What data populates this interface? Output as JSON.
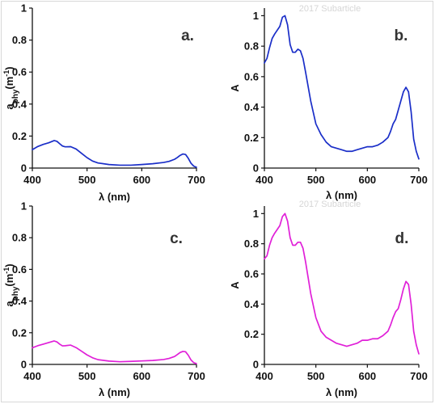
{
  "watermark": "2017 Subarticle",
  "chart_data": [
    {
      "type": "line",
      "panel": "a.",
      "ylabel": "aphy(m-1)",
      "ylabel_parts": {
        "base": "a",
        "sub": "phy",
        "unit_open": "(m",
        "unit_sup": "-1",
        "unit_close": ")"
      },
      "xlabel": "λ (nm)",
      "xlim": [
        400,
        700
      ],
      "ylim": [
        0,
        1
      ],
      "xticks": [
        400,
        500,
        600,
        700
      ],
      "yticks": [
        "0",
        "0.2",
        "0.4",
        "0.6",
        "0.8",
        "1"
      ],
      "series": [
        {
          "color": "#1a2ec8",
          "x": [
            400,
            410,
            420,
            430,
            440,
            445,
            450,
            455,
            460,
            470,
            480,
            490,
            500,
            510,
            520,
            540,
            560,
            580,
            600,
            620,
            640,
            650,
            660,
            665,
            670,
            675,
            680,
            685,
            690,
            695,
            700
          ],
          "y": [
            0.115,
            0.135,
            0.148,
            0.158,
            0.172,
            0.167,
            0.152,
            0.138,
            0.133,
            0.134,
            0.119,
            0.092,
            0.065,
            0.044,
            0.032,
            0.022,
            0.018,
            0.018,
            0.022,
            0.027,
            0.035,
            0.042,
            0.055,
            0.066,
            0.079,
            0.088,
            0.085,
            0.061,
            0.03,
            0.012,
            0.005
          ]
        }
      ]
    },
    {
      "type": "line",
      "panel": "b.",
      "ylabel": "A",
      "xlabel": "λ (nm)",
      "xlim": [
        400,
        700
      ],
      "ylim": [
        0,
        1.05
      ],
      "xticks": [
        400,
        500,
        600,
        700
      ],
      "yticks": [
        "0",
        "0.2",
        "0.4",
        "0.6",
        "0.8",
        "1"
      ],
      "series": [
        {
          "color": "#1a2ec8",
          "x": [
            400,
            405,
            410,
            415,
            420,
            430,
            435,
            440,
            445,
            450,
            455,
            460,
            465,
            470,
            475,
            480,
            490,
            500,
            510,
            520,
            530,
            540,
            550,
            560,
            570,
            580,
            590,
            600,
            610,
            620,
            630,
            640,
            645,
            650,
            655,
            660,
            665,
            670,
            675,
            680,
            685,
            690,
            695,
            700
          ],
          "y": [
            0.69,
            0.72,
            0.79,
            0.85,
            0.88,
            0.93,
            0.99,
            1.0,
            0.94,
            0.81,
            0.76,
            0.76,
            0.78,
            0.77,
            0.72,
            0.63,
            0.44,
            0.29,
            0.22,
            0.17,
            0.14,
            0.13,
            0.12,
            0.11,
            0.11,
            0.12,
            0.13,
            0.14,
            0.14,
            0.15,
            0.17,
            0.2,
            0.24,
            0.29,
            0.32,
            0.38,
            0.44,
            0.5,
            0.53,
            0.5,
            0.37,
            0.19,
            0.11,
            0.06
          ]
        }
      ]
    },
    {
      "type": "line",
      "panel": "c.",
      "ylabel": "aphy(m-1)",
      "ylabel_parts": {
        "base": "a",
        "sub": "phy",
        "unit_open": "(m",
        "unit_sup": "-1",
        "unit_close": ")"
      },
      "xlabel": "λ (nm)",
      "xlim": [
        400,
        700
      ],
      "ylim": [
        0,
        1
      ],
      "xticks": [
        400,
        500,
        600,
        700
      ],
      "yticks": [
        "0",
        "0.2",
        "0.4",
        "0.6",
        "0.8",
        "1"
      ],
      "series": [
        {
          "color": "#e020d8",
          "x": [
            400,
            410,
            420,
            430,
            440,
            445,
            450,
            455,
            460,
            470,
            480,
            490,
            500,
            510,
            520,
            540,
            560,
            580,
            600,
            620,
            640,
            650,
            660,
            665,
            670,
            675,
            680,
            685,
            690,
            695,
            700
          ],
          "y": [
            0.105,
            0.118,
            0.128,
            0.138,
            0.148,
            0.142,
            0.128,
            0.117,
            0.118,
            0.122,
            0.106,
            0.083,
            0.06,
            0.042,
            0.03,
            0.021,
            0.017,
            0.019,
            0.022,
            0.025,
            0.031,
            0.038,
            0.05,
            0.062,
            0.075,
            0.082,
            0.08,
            0.058,
            0.028,
            0.011,
            0.005
          ]
        }
      ]
    },
    {
      "type": "line",
      "panel": "d.",
      "ylabel": "A",
      "xlabel": "λ (nm)",
      "xlim": [
        400,
        700
      ],
      "ylim": [
        0,
        1.05
      ],
      "xticks": [
        400,
        500,
        600,
        700
      ],
      "yticks": [
        "0",
        "0.2",
        "0.4",
        "0.6",
        "0.8",
        "1"
      ],
      "series": [
        {
          "color": "#e020d8",
          "x": [
            400,
            405,
            410,
            415,
            420,
            430,
            435,
            440,
            445,
            450,
            455,
            460,
            465,
            470,
            475,
            480,
            490,
            500,
            510,
            520,
            530,
            540,
            550,
            560,
            570,
            580,
            590,
            600,
            610,
            620,
            630,
            640,
            645,
            650,
            655,
            660,
            665,
            670,
            675,
            680,
            685,
            690,
            695,
            700
          ],
          "y": [
            0.7,
            0.72,
            0.79,
            0.84,
            0.87,
            0.92,
            0.98,
            1.0,
            0.95,
            0.84,
            0.79,
            0.79,
            0.81,
            0.81,
            0.77,
            0.68,
            0.47,
            0.31,
            0.22,
            0.18,
            0.16,
            0.14,
            0.13,
            0.12,
            0.13,
            0.14,
            0.16,
            0.16,
            0.17,
            0.17,
            0.19,
            0.22,
            0.26,
            0.31,
            0.35,
            0.37,
            0.43,
            0.5,
            0.55,
            0.53,
            0.4,
            0.22,
            0.13,
            0.07
          ]
        }
      ]
    }
  ]
}
